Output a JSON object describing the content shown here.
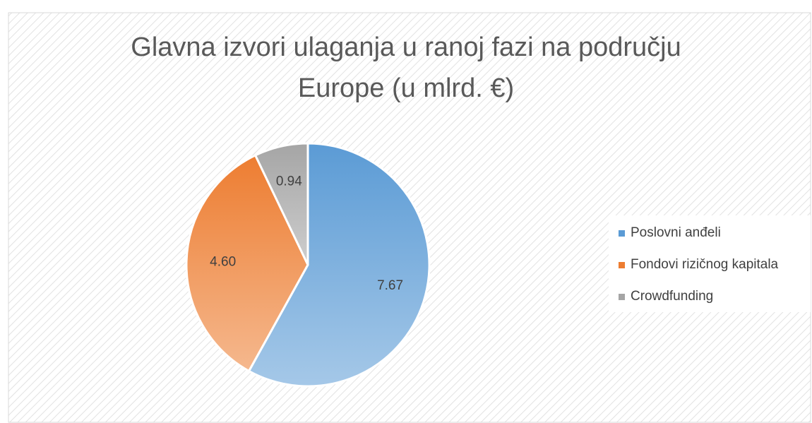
{
  "chart_data": {
    "type": "pie",
    "title": "Glavna izvori ulaganja u ranoj fazi na području Europe (u mlrd. €)",
    "categories": [
      "Poslovni anđeli",
      "Fondovi rizičnog kapitala",
      "Crowdfunding"
    ],
    "values": [
      7.67,
      4.6,
      0.94
    ],
    "value_labels": [
      "7.67",
      "4.60",
      "0.94"
    ],
    "colors": [
      "#5b9bd5",
      "#ed7d31",
      "#a5a5a5"
    ],
    "legend": "right"
  }
}
